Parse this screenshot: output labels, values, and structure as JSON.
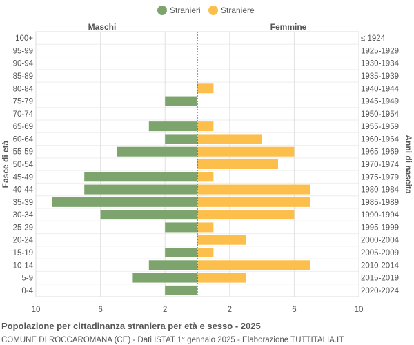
{
  "chart_data": {
    "type": "bar",
    "orientation": "horizontal",
    "title": "Popolazione per cittadinanza straniera per età e sesso - 2025",
    "subtitle": "COMUNE DI ROCCAROMANA (CE) - Dati ISTAT 1° gennaio 2025 - Elaborazione TUTTITALIA.IT",
    "left_group_label": "Maschi",
    "right_group_label": "Femmine",
    "ylabel_left": "Fasce di età",
    "ylabel_right": "Anni di nascita",
    "legend_position": "top",
    "grid": true,
    "xlim": [
      0,
      10
    ],
    "x_ticks": [
      2,
      6,
      10
    ],
    "categories": [
      "100+",
      "95-99",
      "90-94",
      "85-89",
      "80-84",
      "75-79",
      "70-74",
      "65-69",
      "60-64",
      "55-59",
      "50-54",
      "45-49",
      "40-44",
      "35-39",
      "30-34",
      "25-29",
      "20-24",
      "15-19",
      "10-14",
      "5-9",
      "0-4"
    ],
    "birth_years": [
      "≤ 1924",
      "1925-1929",
      "1930-1934",
      "1935-1939",
      "1940-1944",
      "1945-1949",
      "1950-1954",
      "1955-1959",
      "1960-1964",
      "1965-1969",
      "1970-1974",
      "1975-1979",
      "1980-1984",
      "1985-1989",
      "1990-1994",
      "1995-1999",
      "2000-2004",
      "2005-2009",
      "2010-2014",
      "2015-2019",
      "2020-2024"
    ],
    "series": [
      {
        "name": "Stranieri",
        "side": "left",
        "color": "#7da46d",
        "values": [
          0,
          0,
          0,
          0,
          0,
          2,
          0,
          3,
          2,
          5,
          0,
          7,
          7,
          9,
          6,
          2,
          0,
          2,
          3,
          4,
          2
        ]
      },
      {
        "name": "Straniere",
        "side": "right",
        "color": "#fdbf4b",
        "values": [
          0,
          0,
          0,
          0,
          1,
          0,
          0,
          1,
          4,
          6,
          5,
          1,
          7,
          7,
          6,
          1,
          3,
          1,
          7,
          3,
          0
        ]
      }
    ]
  }
}
